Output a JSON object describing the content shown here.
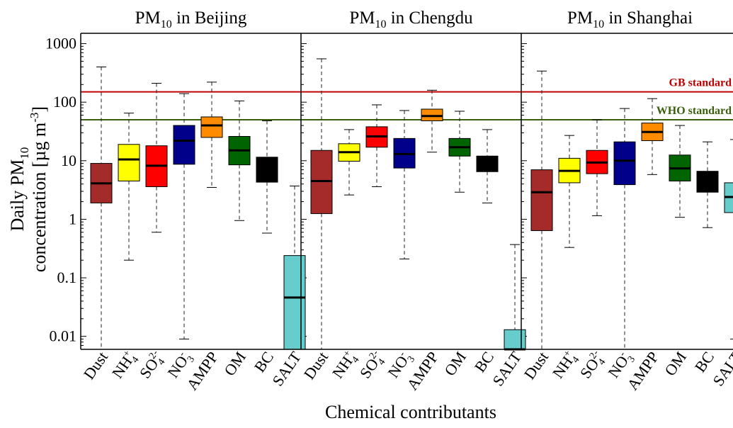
{
  "chart_data": {
    "type": "boxplot",
    "xlabel": "Chemical contributants",
    "ylabel_line1": {
      "pre": "Daily PM",
      "sub": "10"
    },
    "ylabel_line2": {
      "pre": "concentration [µg m",
      "sup": "-3",
      "post": "]"
    },
    "yscale": "log",
    "ylim": [
      0.006,
      1500
    ],
    "yticks": [
      {
        "value": 0.01,
        "label": "0.01"
      },
      {
        "value": 0.1,
        "label": "0.1"
      },
      {
        "value": 1,
        "label": "1"
      },
      {
        "value": 10,
        "label": "10"
      },
      {
        "value": 100,
        "label": "100"
      },
      {
        "value": 1000,
        "label": "1000"
      }
    ],
    "categories": [
      {
        "key": "Dust",
        "base": "Dust",
        "sub": "",
        "sup": "",
        "color": "#a52a2a"
      },
      {
        "key": "NH4",
        "base": "NH",
        "sub": "4",
        "sup": "+",
        "color": "#ffff00"
      },
      {
        "key": "SO4",
        "base": "SO",
        "sub": "4",
        "sup": "2-",
        "color": "#ff0000"
      },
      {
        "key": "NO3",
        "base": "NO",
        "sub": "3",
        "sup": "-",
        "color": "#00008b"
      },
      {
        "key": "AMPP",
        "base": "AMPP",
        "sub": "",
        "sup": "",
        "color": "#ff8c00"
      },
      {
        "key": "OM",
        "base": "OM",
        "sub": "",
        "sup": "",
        "color": "#006400"
      },
      {
        "key": "BC",
        "base": "BC",
        "sub": "",
        "sup": "",
        "color": "#000000"
      },
      {
        "key": "SALT",
        "base": "SALT",
        "sub": "",
        "sup": "",
        "color": "#66cccc"
      }
    ],
    "standards": [
      {
        "name": "GB standard",
        "value": 150,
        "color": "#c00000"
      },
      {
        "name": "WHO standard",
        "value": 50,
        "color": "#3a5f0b"
      }
    ],
    "panels": [
      {
        "title": {
          "pre": "PM",
          "sub": "10",
          "post": " in Beijing"
        },
        "boxes": [
          {
            "whislo": 0.006,
            "q1": 1.9,
            "med": 4.1,
            "q3": 9,
            "whishi": 400
          },
          {
            "whislo": 0.2,
            "q1": 4.5,
            "med": 10.5,
            "q3": 19,
            "whishi": 65
          },
          {
            "whislo": 0.6,
            "q1": 3.6,
            "med": 8.2,
            "q3": 18,
            "whishi": 210
          },
          {
            "whislo": 0.009,
            "q1": 8.7,
            "med": 22,
            "q3": 40,
            "whishi": 140
          },
          {
            "whislo": 3.5,
            "q1": 25,
            "med": 40,
            "q3": 56,
            "whishi": 220
          },
          {
            "whislo": 0.95,
            "q1": 8.5,
            "med": 15,
            "q3": 26,
            "whishi": 105
          },
          {
            "whislo": 0.58,
            "q1": 4.3,
            "med": 7,
            "q3": 11.5,
            "whishi": 48
          },
          {
            "whislo": 0.006,
            "q1": 0.006,
            "med": 0.046,
            "q3": 0.24,
            "whishi": 3.7
          }
        ]
      },
      {
        "title": {
          "pre": "PM",
          "sub": "10",
          "post": " in Chengdu"
        },
        "boxes": [
          {
            "whislo": 0.006,
            "q1": 1.25,
            "med": 4.5,
            "q3": 15,
            "whishi": 550
          },
          {
            "whislo": 2.6,
            "q1": 9.8,
            "med": 14,
            "q3": 19.5,
            "whishi": 34
          },
          {
            "whislo": 3.6,
            "q1": 17,
            "med": 26,
            "q3": 38,
            "whishi": 90
          },
          {
            "whislo": 0.21,
            "q1": 7.5,
            "med": 13,
            "q3": 24,
            "whishi": 72
          },
          {
            "whislo": 14,
            "q1": 48,
            "med": 58,
            "q3": 76,
            "whishi": 160
          },
          {
            "whislo": 2.9,
            "q1": 12,
            "med": 17,
            "q3": 24,
            "whishi": 70
          },
          {
            "whislo": 1.9,
            "q1": 6.5,
            "med": 9,
            "q3": 12,
            "whishi": 34
          },
          {
            "whislo": 0.006,
            "q1": 0.006,
            "med": 0.006,
            "q3": 0.013,
            "whishi": 0.37
          }
        ]
      },
      {
        "title": {
          "pre": "PM",
          "sub": "10",
          "post": " in Shanghai"
        },
        "boxes": [
          {
            "whislo": 0.006,
            "q1": 0.64,
            "med": 2.9,
            "q3": 7,
            "whishi": 340
          },
          {
            "whislo": 0.33,
            "q1": 4.2,
            "med": 6.7,
            "q3": 11,
            "whishi": 27
          },
          {
            "whislo": 1.15,
            "q1": 6,
            "med": 9.3,
            "q3": 15,
            "whishi": 50
          },
          {
            "whislo": 0.006,
            "q1": 3.9,
            "med": 10,
            "q3": 21,
            "whishi": 78
          },
          {
            "whislo": 5.8,
            "q1": 22,
            "med": 31,
            "q3": 44,
            "whishi": 115
          },
          {
            "whislo": 1.08,
            "q1": 4.5,
            "med": 7.4,
            "q3": 12.5,
            "whishi": 40
          },
          {
            "whislo": 0.72,
            "q1": 2.9,
            "med": 4.2,
            "q3": 6.6,
            "whishi": 21
          },
          {
            "whislo": 0.009,
            "q1": 1.3,
            "med": 2.4,
            "q3": 4.2,
            "whishi": 23
          }
        ]
      }
    ]
  }
}
